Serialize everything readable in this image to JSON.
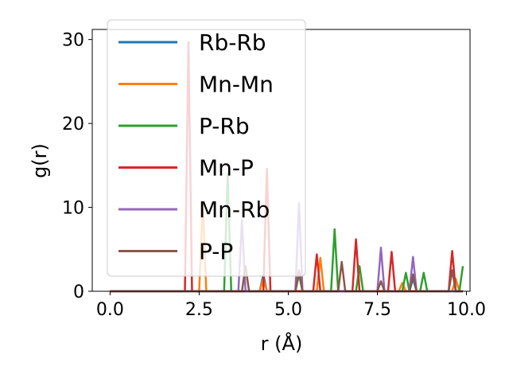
{
  "chart_data": {
    "type": "line",
    "title": "",
    "xlabel": "r (Å)",
    "ylabel": "g(r)",
    "xlim": [
      -0.5,
      10.1
    ],
    "ylim": [
      0,
      31.2
    ],
    "xticks": [
      0.0,
      2.5,
      5.0,
      7.5,
      10.0
    ],
    "xtick_labels": [
      "0.0",
      "2.5",
      "5.0",
      "7.5",
      "10.0"
    ],
    "yticks": [
      0,
      10,
      20,
      30
    ],
    "ytick_labels": [
      "0",
      "10",
      "20",
      "30"
    ],
    "grid": false,
    "legend_placement": "upper-left",
    "series": [
      {
        "name": "Rb-Rb",
        "color": "#1f77b4",
        "peaks": [
          [
            4.3,
            2.0
          ],
          [
            8.5,
            1.5
          ]
        ]
      },
      {
        "name": "Mn-Mn",
        "color": "#ff7f0e",
        "peaks": [
          [
            2.6,
            10.5
          ],
          [
            4.3,
            1.5
          ],
          [
            5.9,
            4.0
          ],
          [
            8.2,
            1.0
          ],
          [
            9.7,
            1.5
          ]
        ]
      },
      {
        "name": "P-Rb",
        "color": "#2ca02c",
        "peaks": [
          [
            3.3,
            14.0
          ],
          [
            5.3,
            2.0
          ],
          [
            6.3,
            7.4
          ],
          [
            7.0,
            3.0
          ],
          [
            8.3,
            2.2
          ],
          [
            8.8,
            2.2
          ],
          [
            9.9,
            3.0
          ]
        ]
      },
      {
        "name": "Mn-P",
        "color": "#d62728",
        "peaks": [
          [
            2.2,
            29.7
          ],
          [
            4.4,
            14.6
          ],
          [
            5.8,
            4.4
          ],
          [
            6.9,
            6.2
          ],
          [
            7.9,
            4.7
          ],
          [
            9.6,
            4.8
          ]
        ]
      },
      {
        "name": "Mn-Rb",
        "color": "#9467bd",
        "peaks": [
          [
            3.7,
            8.5
          ],
          [
            5.3,
            10.5
          ],
          [
            7.6,
            5.2
          ],
          [
            8.5,
            4.1
          ]
        ]
      },
      {
        "name": "P-P",
        "color": "#8c564b",
        "peaks": [
          [
            3.8,
            3.0
          ],
          [
            5.3,
            2.5
          ],
          [
            6.5,
            3.5
          ],
          [
            7.6,
            1.2
          ],
          [
            8.5,
            2.0
          ],
          [
            9.6,
            2.5
          ]
        ]
      }
    ]
  }
}
